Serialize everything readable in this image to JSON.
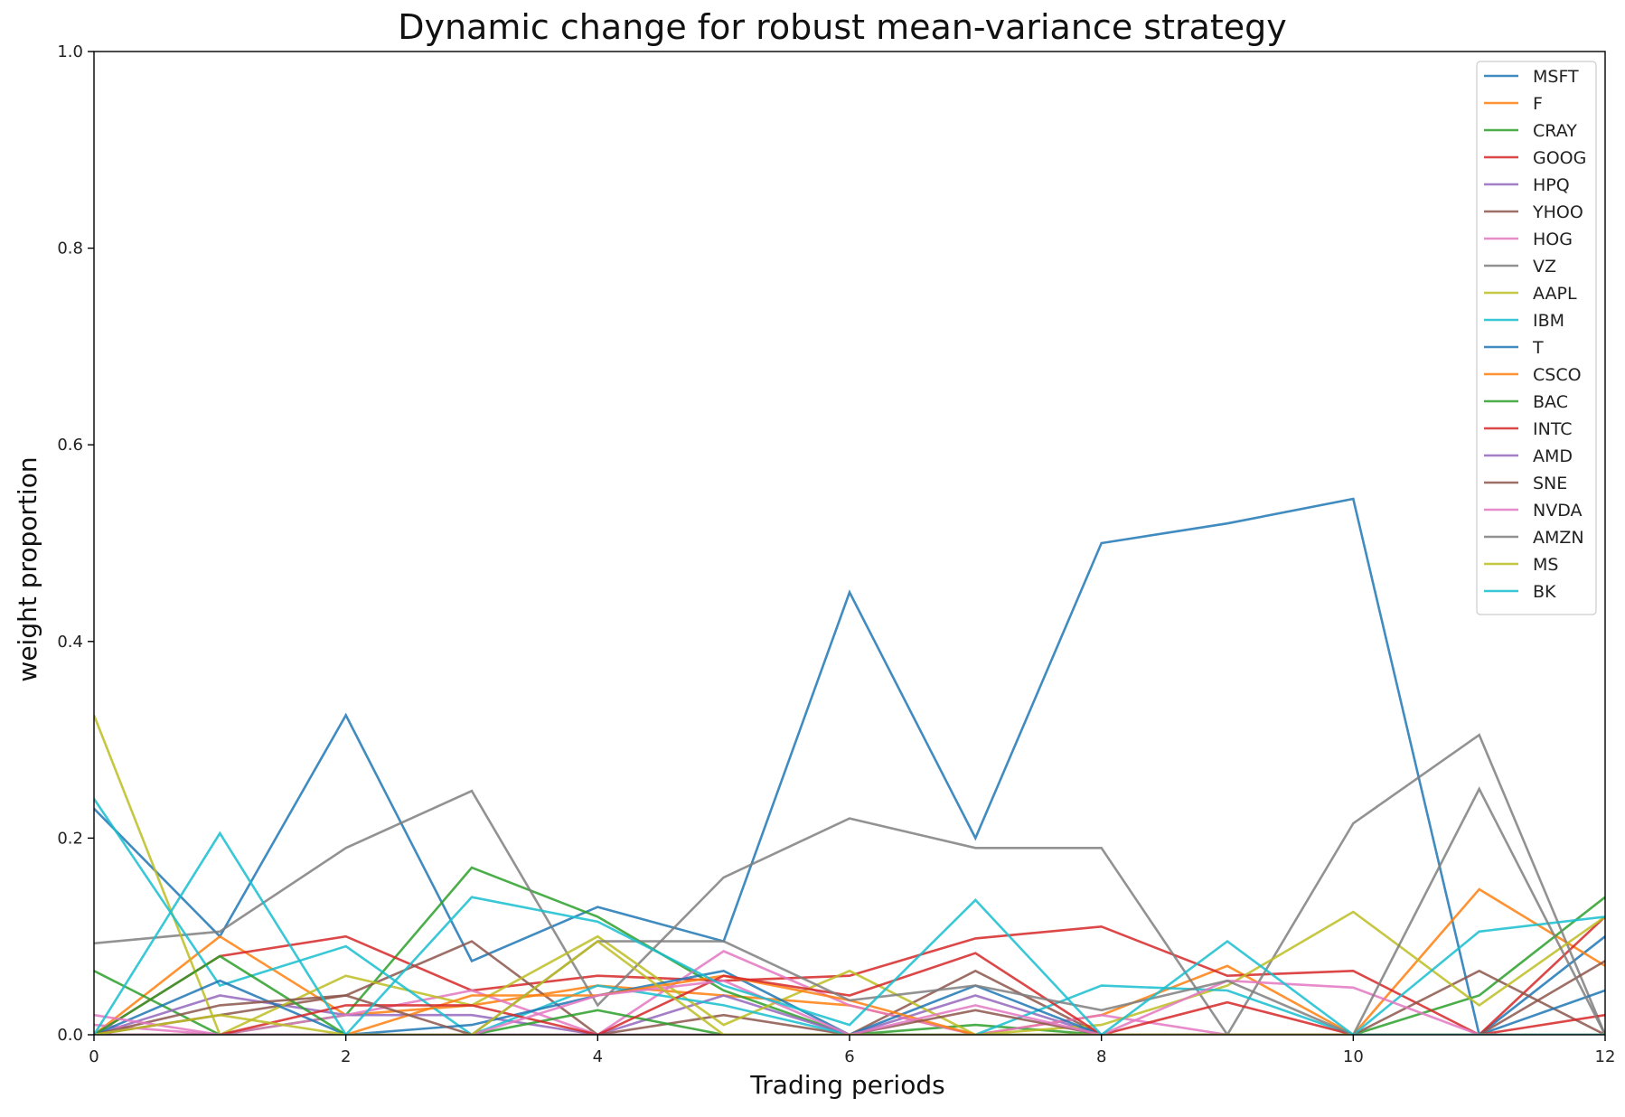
{
  "chart_data": {
    "type": "line",
    "title": "Dynamic change for robust mean-variance strategy",
    "xlabel": "Trading periods",
    "ylabel": "weight proportion",
    "xlim": [
      0,
      12
    ],
    "ylim": [
      0,
      1.0
    ],
    "x_ticks": [
      "0",
      "2",
      "4",
      "6",
      "8",
      "10",
      "12"
    ],
    "y_ticks": [
      "0.0",
      "0.2",
      "0.4",
      "0.6",
      "0.8",
      "1.0"
    ],
    "x_tick_values": [
      0,
      2,
      4,
      6,
      8,
      10,
      12
    ],
    "y_tick_values": [
      0,
      0.2,
      0.4,
      0.6,
      0.8,
      1.0
    ],
    "grid": false,
    "legend_position": "top-right",
    "x": [
      0,
      1,
      2,
      3,
      4,
      5,
      6,
      7,
      8,
      9,
      10,
      11,
      12
    ],
    "series": [
      {
        "name": "MSFT",
        "color": "#1f77b4",
        "values": [
          0.23,
          0.1,
          0.325,
          0.075,
          0.13,
          0.095,
          0.45,
          0.2,
          0.5,
          0.52,
          0.545,
          0.0,
          0.1
        ]
      },
      {
        "name": "F",
        "color": "#ff7f0e",
        "values": [
          0.0,
          0.1,
          0.02,
          0.03,
          0.05,
          0.04,
          0.03,
          0.0,
          0.02,
          0.07,
          0.0,
          0.148,
          0.07
        ]
      },
      {
        "name": "CRAY",
        "color": "#2ca02c",
        "values": [
          0.065,
          0.0,
          0.02,
          0.17,
          0.12,
          0.045,
          0.0,
          0.01,
          0.0,
          0.0,
          0.0,
          0.04,
          0.14
        ]
      },
      {
        "name": "GOOG",
        "color": "#d62728",
        "values": [
          0.0,
          0.08,
          0.1,
          0.045,
          0.06,
          0.055,
          0.06,
          0.098,
          0.11,
          0.06,
          0.065,
          0.0,
          0.12
        ]
      },
      {
        "name": "HPQ",
        "color": "#9467bd",
        "values": [
          0.0,
          0.04,
          0.02,
          0.02,
          0.0,
          0.04,
          0.0,
          0.04,
          0.0,
          0.0,
          0.0,
          0.0,
          0.0
        ]
      },
      {
        "name": "YHOO",
        "color": "#8c564b",
        "values": [
          0.0,
          0.02,
          0.04,
          0.095,
          0.0,
          0.02,
          0.0,
          0.065,
          0.0,
          0.0,
          0.0,
          0.065,
          0.0
        ]
      },
      {
        "name": "HOG",
        "color": "#e377c2",
        "values": [
          0.01,
          0.0,
          0.02,
          0.045,
          0.0,
          0.085,
          0.03,
          0.0,
          0.02,
          0.0,
          0.0,
          0.0,
          0.0
        ]
      },
      {
        "name": "VZ",
        "color": "#7f7f7f",
        "values": [
          0.093,
          0.105,
          0.19,
          0.248,
          0.03,
          0.16,
          0.22,
          0.19,
          0.19,
          0.0,
          0.215,
          0.305,
          0.0
        ]
      },
      {
        "name": "AAPL",
        "color": "#bcbd22",
        "values": [
          0.325,
          0.0,
          0.06,
          0.03,
          0.1,
          0.01,
          0.065,
          0.0,
          0.01,
          0.05,
          0.125,
          0.03,
          0.12
        ]
      },
      {
        "name": "IBM",
        "color": "#17becf",
        "values": [
          0.24,
          0.05,
          0.09,
          0.0,
          0.05,
          0.03,
          0.0,
          0.0,
          0.05,
          0.045,
          0.0,
          0.105,
          0.12
        ]
      },
      {
        "name": "T",
        "color": "#1f77b4",
        "values": [
          0.0,
          0.055,
          0.0,
          0.01,
          0.04,
          0.065,
          0.0,
          0.05,
          0.0,
          0.0,
          0.0,
          0.0,
          0.045
        ]
      },
      {
        "name": "CSCO",
        "color": "#ff7f0e",
        "values": [
          0.0,
          0.0,
          0.0,
          0.04,
          0.04,
          0.06,
          0.035,
          0.0,
          0.0,
          0.0,
          0.0,
          0.0,
          0.0
        ]
      },
      {
        "name": "BAC",
        "color": "#2ca02c",
        "values": [
          0.0,
          0.08,
          0.0,
          0.0,
          0.025,
          0.0,
          0.0,
          0.0,
          0.0,
          0.0,
          0.0,
          0.0,
          0.0
        ]
      },
      {
        "name": "INTC",
        "color": "#d62728",
        "values": [
          0.0,
          0.0,
          0.03,
          0.03,
          0.0,
          0.06,
          0.04,
          0.083,
          0.0,
          0.033,
          0.0,
          0.0,
          0.02
        ]
      },
      {
        "name": "AMD",
        "color": "#9467bd",
        "values": [
          0.0,
          0.0,
          0.0,
          0.0,
          0.0,
          0.0,
          0.0,
          0.0,
          0.0,
          0.0,
          0.0,
          0.0,
          0.0
        ]
      },
      {
        "name": "SNE",
        "color": "#8c564b",
        "values": [
          0.0,
          0.03,
          0.04,
          0.0,
          0.0,
          0.0,
          0.0,
          0.025,
          0.0,
          0.0,
          0.0,
          0.0,
          0.075
        ]
      },
      {
        "name": "NVDA",
        "color": "#e377c2",
        "values": [
          0.02,
          0.0,
          0.0,
          0.0,
          0.04,
          0.055,
          0.0,
          0.03,
          0.0,
          0.055,
          0.048,
          0.0,
          0.0
        ]
      },
      {
        "name": "AMZN",
        "color": "#7f7f7f",
        "values": [
          0.0,
          0.0,
          0.0,
          0.0,
          0.095,
          0.095,
          0.035,
          0.05,
          0.025,
          0.055,
          0.0,
          0.25,
          0.0
        ]
      },
      {
        "name": "MS",
        "color": "#bcbd22",
        "values": [
          0.0,
          0.02,
          0.0,
          0.0,
          0.095,
          0.0,
          0.0,
          0.0,
          0.0,
          0.0,
          0.0,
          0.0,
          0.0
        ]
      },
      {
        "name": "BK",
        "color": "#17becf",
        "values": [
          0.0,
          0.205,
          0.0,
          0.14,
          0.115,
          0.05,
          0.01,
          0.137,
          0.0,
          0.095,
          0.0,
          0.0,
          0.0
        ]
      }
    ]
  }
}
